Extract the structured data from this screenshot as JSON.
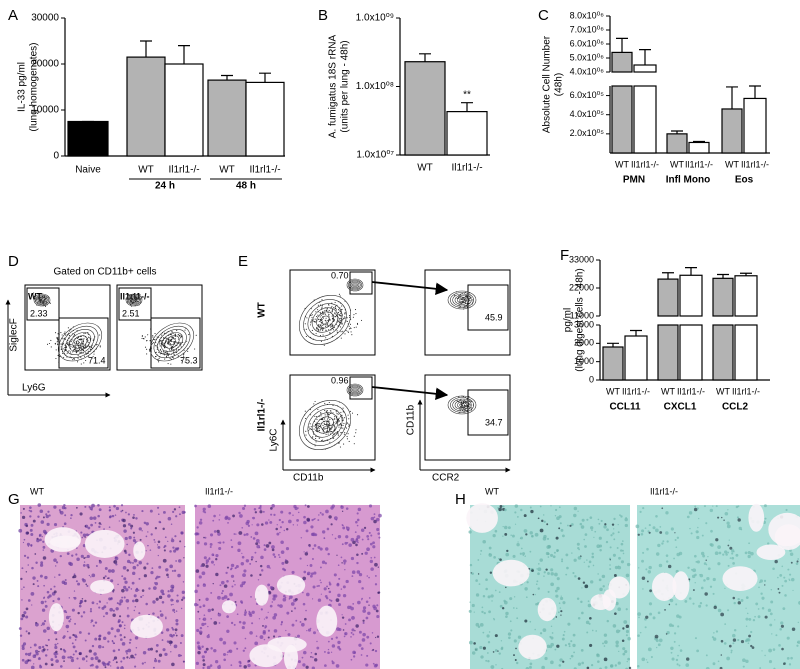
{
  "chart_data": [
    {
      "panel": "A",
      "type": "bar",
      "ylabel": [
        "IL-33 pg/ml",
        "(lung homogenates)"
      ],
      "categories": [
        "Naive",
        "WT",
        "Il1rl1-/-",
        "WT",
        "Il1rl1-/-"
      ],
      "groups": [
        "24 h",
        "48 h"
      ],
      "values": [
        7500,
        21500,
        20000,
        16500,
        16000
      ],
      "errors": [
        0,
        3500,
        4000,
        1000,
        2000
      ],
      "colors": [
        "#000000",
        "#b3b3b3",
        "#ffffff",
        "#b3b3b3",
        "#ffffff"
      ],
      "ylim": [
        0,
        30000
      ],
      "yticks": [
        0,
        10000,
        20000,
        30000
      ]
    },
    {
      "panel": "B",
      "type": "bar",
      "ylabel": [
        "A. fumigatus 18S rRNA",
        "(units per lung - 48h)"
      ],
      "categories": [
        "WT",
        "Il1rl1-/-"
      ],
      "values": [
        230000000,
        43000000
      ],
      "errors": [
        70000000,
        15000000
      ],
      "colors": [
        "#b3b3b3",
        "#ffffff"
      ],
      "log_scale": true,
      "annotations": [
        "",
        "**"
      ],
      "ylim": [
        10000000,
        1000000000
      ],
      "yticks": [
        {
          "value": 10000000,
          "label": "1.0x10⁰⁷"
        },
        {
          "value": 100000000,
          "label": "1.0x10⁰⁸"
        },
        {
          "value": 1000000000,
          "label": "1.0x10⁰⁹"
        }
      ]
    },
    {
      "panel": "C",
      "type": "bar",
      "ylabel": [
        "Absolute Cell Number",
        "(48h)"
      ],
      "categories": [
        "WT",
        "Il1rl1-/-",
        "WT",
        "Il1rl1-/-",
        "WT",
        "Il1rl1-/-"
      ],
      "groups": [
        "PMN",
        "Infl Mono",
        "Eos"
      ],
      "values": [
        5400000,
        4500000,
        200000,
        110000,
        460000,
        570000
      ],
      "errors": [
        1000000,
        1100000,
        30000,
        10000,
        230000,
        130000
      ],
      "colors": [
        "#b3b3b3",
        "#ffffff",
        "#b3b3b3",
        "#ffffff",
        "#b3b3b3",
        "#ffffff"
      ],
      "ylim_segments": [
        [
          0,
          700000
        ],
        [
          4000000,
          8000000
        ]
      ],
      "yticks": [
        {
          "value": 200000,
          "label": "2.0x10⁰⁵"
        },
        {
          "value": 400000,
          "label": "4.0x10⁰⁵"
        },
        {
          "value": 600000,
          "label": "6.0x10⁰⁵"
        },
        {
          "value": 4000000,
          "label": "4.0x10⁰⁶"
        },
        {
          "value": 5000000,
          "label": "5.0x10⁰⁶"
        },
        {
          "value": 6000000,
          "label": "6.0x10⁰⁶"
        },
        {
          "value": 7000000,
          "label": "7.0x10⁰⁶"
        },
        {
          "value": 8000000,
          "label": "8.0x10⁰⁶"
        }
      ]
    },
    {
      "panel": "F",
      "type": "bar",
      "ylabel": [
        "pg/ml",
        "(lung digest cells - 48h)"
      ],
      "categories": [
        "WT",
        "Il1rl1-/-",
        "WT",
        "Il1rl1-/-",
        "WT",
        "Il1rl1-/-"
      ],
      "groups": [
        "CCL11",
        "CXCL1",
        "CCL2"
      ],
      "values": [
        1800,
        2400,
        25500,
        27000,
        25800,
        26800
      ],
      "errors": [
        200,
        300,
        2500,
        3000,
        1500,
        1000
      ],
      "colors": [
        "#b3b3b3",
        "#ffffff",
        "#b3b3b3",
        "#ffffff",
        "#b3b3b3",
        "#ffffff"
      ],
      "ylim_segments": [
        [
          0,
          3000
        ],
        [
          11000,
          33000
        ]
      ],
      "yticks": [
        0,
        1000,
        2000,
        3000,
        11000,
        22000,
        33000
      ]
    }
  ],
  "flow_d": {
    "panel": "D",
    "title": "Gated on CD11b+ cells",
    "y_axis": "SiglecF",
    "x_axis": "Ly6G",
    "plots": [
      {
        "label": "WT",
        "gates": [
          "2.33",
          "71.4"
        ]
      },
      {
        "label": "Il1rl1-/-",
        "gates": [
          "2.51",
          "75.3"
        ]
      }
    ]
  },
  "flow_e": {
    "panel": "E",
    "axes": [
      "Ly6C",
      "CD11b",
      "CD11b",
      "CCR2"
    ],
    "rows": [
      {
        "label": "WT",
        "gates": [
          "0.70",
          "45.9"
        ]
      },
      {
        "label": "Il1rl1-/-",
        "gates": [
          "0.96",
          "34.7"
        ]
      }
    ]
  },
  "histology": [
    {
      "panel": "G",
      "images": [
        "WT",
        "Il1rl1-/-"
      ]
    },
    {
      "panel": "H",
      "images": [
        "WT",
        "Il1rl1-/-"
      ]
    }
  ]
}
